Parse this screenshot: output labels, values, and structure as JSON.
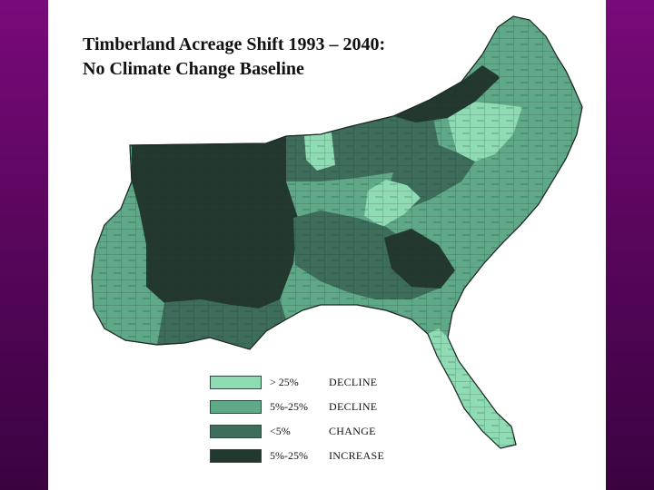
{
  "title": {
    "line1": "Timberland Acreage Shift 1993 – 2040:",
    "line2": "No Climate Change Baseline"
  },
  "colors": {
    "background": "#6a0a6e",
    "decline_gt25": "#8fdcb4",
    "decline_5_25": "#5fa888",
    "change_lt5": "#3e6d5b",
    "increase_5_25": "#23392f",
    "county_lines": "#1c2a24"
  },
  "legend": [
    {
      "range": "> 25%",
      "direction": "DECLINE",
      "color": "#8fdcb4"
    },
    {
      "range": "5%-25%",
      "direction": "DECLINE",
      "color": "#5fa888"
    },
    {
      "range": "<5%",
      "direction": "CHANGE",
      "color": "#3e6d5b"
    },
    {
      "range": "5%-25%",
      "direction": "INCREASE",
      "color": "#23392f"
    }
  ]
}
